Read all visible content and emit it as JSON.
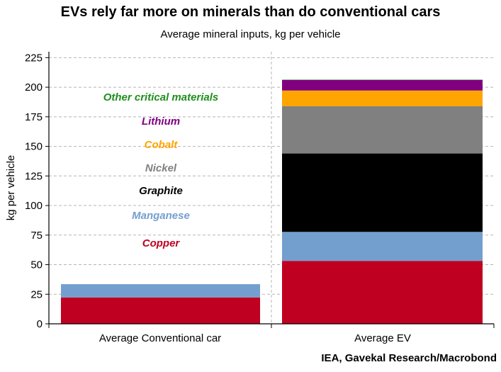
{
  "title": "EVs rely far more on minerals than do conventional cars",
  "subtitle": "Average mineral inputs, kg per vehicle",
  "source": "IEA, Gavekal Research/Macrobond",
  "chart_data": {
    "type": "bar",
    "stacked": true,
    "categories": [
      "Average Conventional car",
      "Average EV"
    ],
    "ylabel": "kg per vehicle",
    "xlabel": "",
    "ylim": [
      0,
      230
    ],
    "yticks": [
      0,
      25,
      50,
      75,
      100,
      125,
      150,
      175,
      200,
      225
    ],
    "grid": true,
    "series": [
      {
        "name": "Copper",
        "color": "#c00020",
        "values": [
          22.3,
          53.2
        ]
      },
      {
        "name": "Manganese",
        "color": "#739fcf",
        "values": [
          11.2,
          24.5
        ]
      },
      {
        "name": "Graphite",
        "color": "#000000",
        "values": [
          0,
          66.3
        ]
      },
      {
        "name": "Nickel",
        "color": "#808080",
        "values": [
          0,
          39.9
        ]
      },
      {
        "name": "Cobalt",
        "color": "#ffa500",
        "values": [
          0,
          13.3
        ]
      },
      {
        "name": "Lithium",
        "color": "#800080",
        "values": [
          0,
          8.9
        ]
      },
      {
        "name": "Other critical materials",
        "color": "#1f8f1f",
        "values": [
          0,
          0.3
        ]
      }
    ],
    "legend_order": [
      "Other critical materials",
      "Lithium",
      "Cobalt",
      "Nickel",
      "Graphite",
      "Manganese",
      "Copper"
    ]
  }
}
